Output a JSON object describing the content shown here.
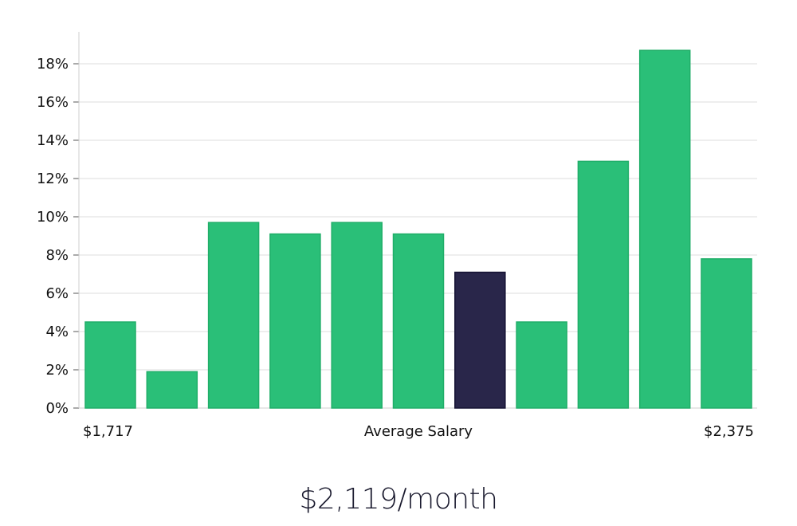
{
  "chart_data": {
    "type": "bar",
    "values": [
      4.5,
      1.9,
      9.7,
      9.1,
      9.7,
      9.1,
      7.1,
      4.5,
      12.9,
      18.7,
      7.8
    ],
    "highlight_index": 6,
    "y_ticks": [
      "0%",
      "2%",
      "4%",
      "6%",
      "8%",
      "10%",
      "12%",
      "14%",
      "16%",
      "18%"
    ],
    "ylim": [
      0,
      19.5
    ],
    "x_min_label": "$1,717",
    "xlabel": "Average Salary",
    "x_max_label": "$2,375",
    "grid": true,
    "colors": {
      "bar": "#2abf78",
      "bar_border": "#1fae68",
      "highlight": "#29264a",
      "highlight_border": "#141233",
      "grid": "#dcdcdc",
      "axis": "#cfcfcf"
    }
  },
  "headline": "$2,119/month"
}
